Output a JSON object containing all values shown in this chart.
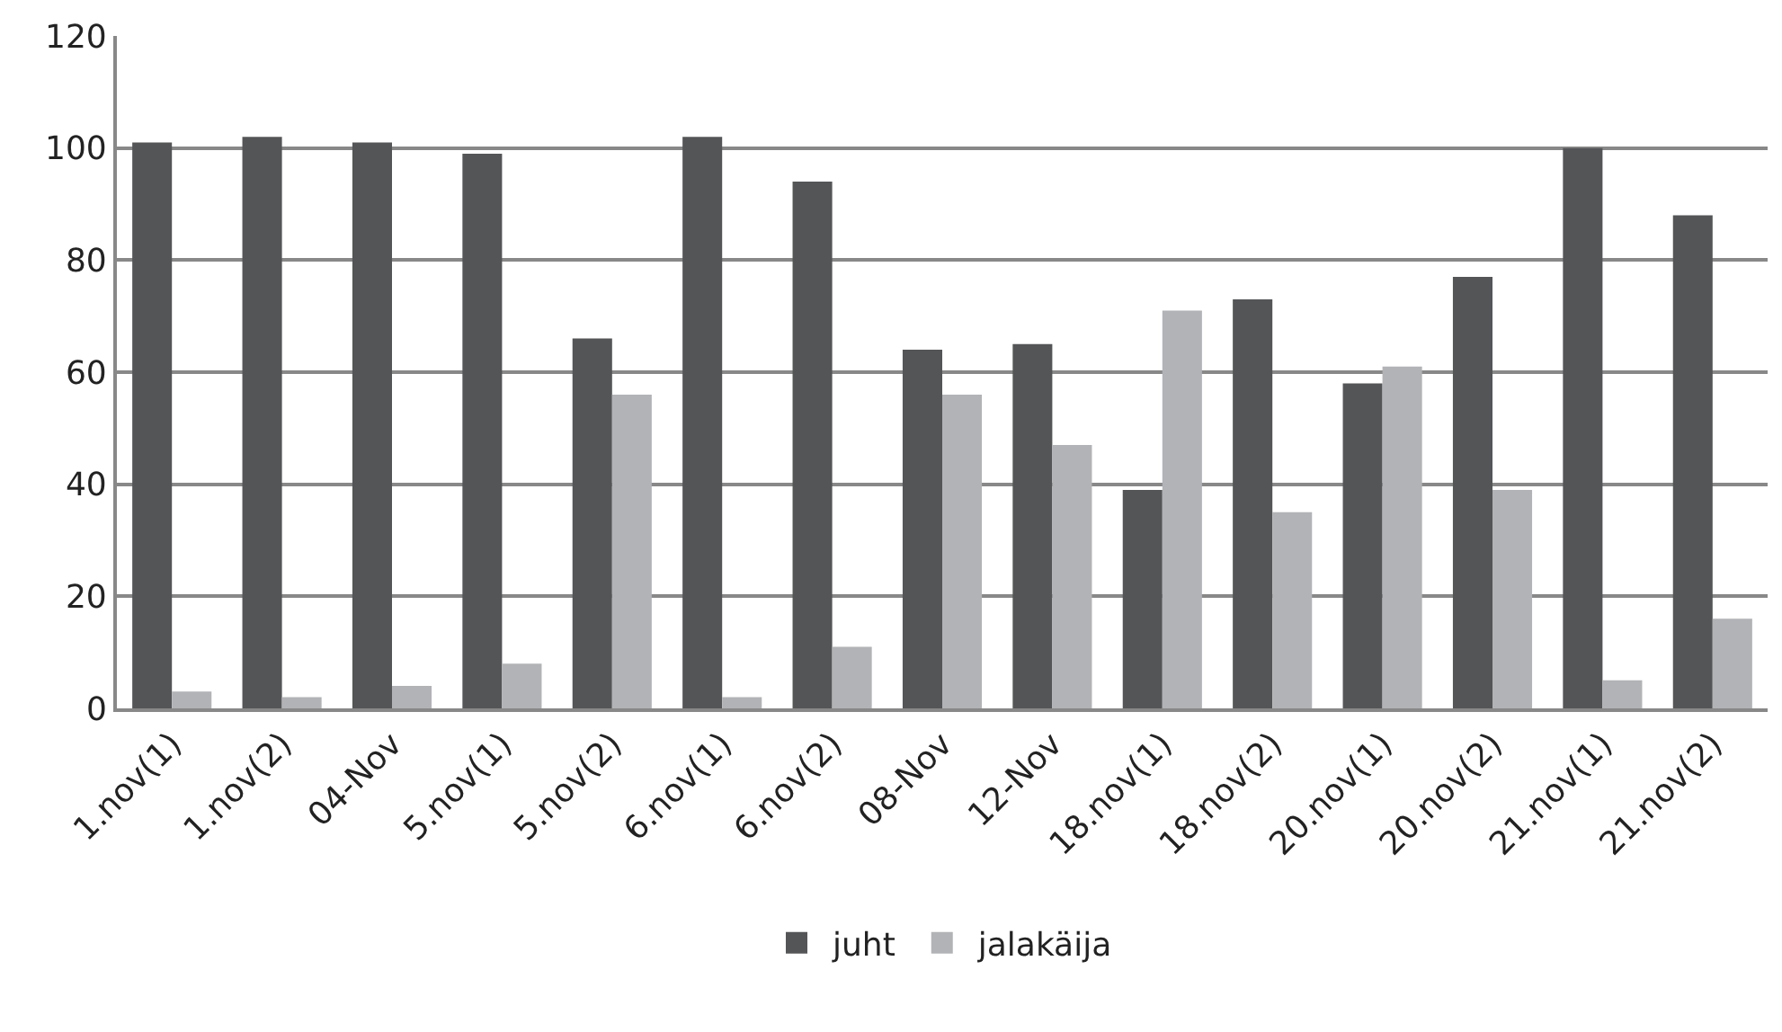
{
  "chart_data": {
    "type": "bar",
    "categories": [
      "1.nov(1)",
      "1.nov(2)",
      "04-Nov",
      "5.nov(1)",
      "5.nov(2)",
      "6.nov(1)",
      "6.nov(2)",
      "08-Nov",
      "12-Nov",
      "18.nov(1)",
      "18.nov(2)",
      "20.nov(1)",
      "20.nov(2)",
      "21.nov(1)",
      "21.nov(2)"
    ],
    "series": [
      {
        "name": "juht",
        "color": "#545557",
        "values": [
          101,
          102,
          101,
          99,
          66,
          102,
          94,
          64,
          65,
          39,
          73,
          58,
          77,
          100,
          88
        ]
      },
      {
        "name": "jalakäija",
        "color": "#b2b3b6",
        "values": [
          3,
          2,
          4,
          8,
          56,
          2,
          11,
          56,
          47,
          71,
          35,
          61,
          39,
          5,
          16
        ]
      }
    ],
    "ylim": [
      0,
      120
    ],
    "yticks": [
      0,
      20,
      40,
      60,
      80,
      100,
      120
    ],
    "grid": "y",
    "legend": "bottom"
  }
}
